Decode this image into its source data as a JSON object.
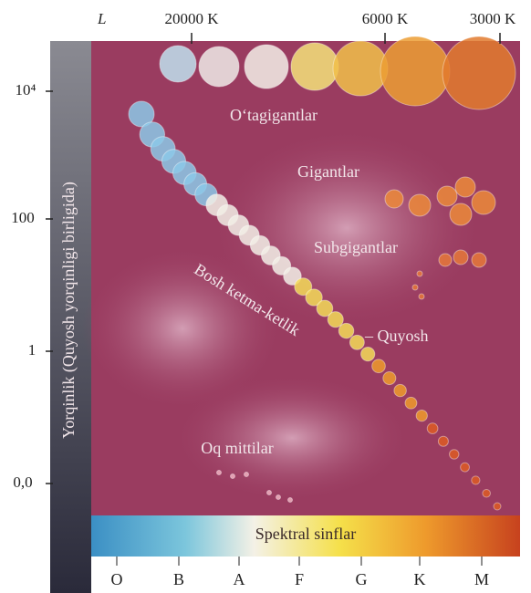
{
  "header": {
    "luminosity_symbol": "L",
    "temperatures": [
      "20000 K",
      "6000 K",
      "3000 K"
    ]
  },
  "y_axis": {
    "title": "Yorqinlik (Quyosh yorqinligi birligida)",
    "ticks": [
      "10⁴",
      "100",
      "1",
      "0,0"
    ]
  },
  "regions": {
    "supergiants": "O‘tagigantlar",
    "giants": "Gigantlar",
    "subgiants": "Subgigantlar",
    "main_sequence": "Bosh ketma-ketlik",
    "sun": "– Quyosh",
    "white_dwarfs": "Oq mittilar"
  },
  "spectral_bar": {
    "title": "Spektral sinflar",
    "classes": [
      "O",
      "B",
      "A",
      "F",
      "G",
      "K",
      "M"
    ]
  }
}
